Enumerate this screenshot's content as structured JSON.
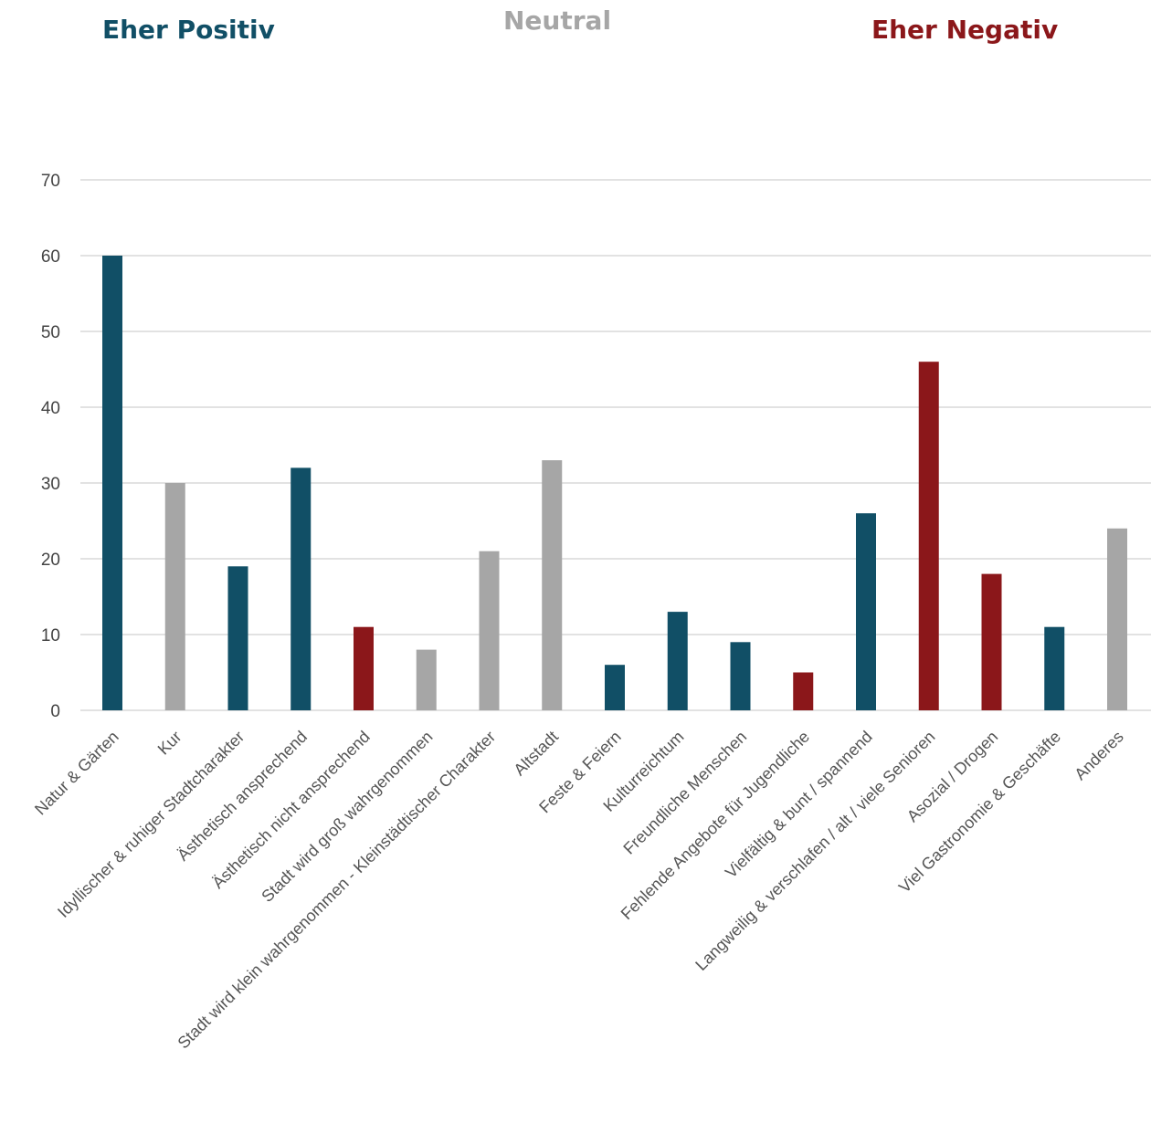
{
  "legend": {
    "positive": "Eher Positiv",
    "neutral": "Neutral",
    "negative": "Eher Negativ"
  },
  "colors": {
    "positive": "#114f66",
    "neutral": "#a6a6a6",
    "negative": "#8b171a",
    "grid": "#d9d9d9"
  },
  "chart_data": {
    "type": "bar",
    "categories": [
      "Natur & Gärten",
      "Kur",
      "Idyllischer & ruhiger Stadtcharakter",
      "Ästhetisch ansprechend",
      "Ästhetisch nicht ansprechend",
      "Stadt wird groß wahrgenommen",
      "Stadt wird klein wahrgenommen - Kleinstädtischer Charakter",
      "Altstadt",
      "Feste & Feiern",
      "Kulturreichtum",
      "Freundliche Menschen",
      "Fehlende Angebote für Jugendliche",
      "Vielfältig & bunt / spannend",
      "Langweilig & verschlafen / alt / viele Senioren",
      "Asozial / Drogen",
      "Viel Gastronomie & Geschäfte",
      "Anderes"
    ],
    "values": [
      60,
      30,
      19,
      32,
      11,
      8,
      21,
      33,
      6,
      13,
      9,
      5,
      26,
      46,
      18,
      11,
      24
    ],
    "sentiment": [
      "positive",
      "neutral",
      "positive",
      "positive",
      "negative",
      "neutral",
      "neutral",
      "neutral",
      "positive",
      "positive",
      "positive",
      "negative",
      "positive",
      "negative",
      "negative",
      "positive",
      "neutral"
    ],
    "ylim": [
      0,
      70
    ],
    "yticks": [
      0,
      10,
      20,
      30,
      40,
      50,
      60,
      70
    ],
    "grid": true,
    "legend_position": "top"
  }
}
